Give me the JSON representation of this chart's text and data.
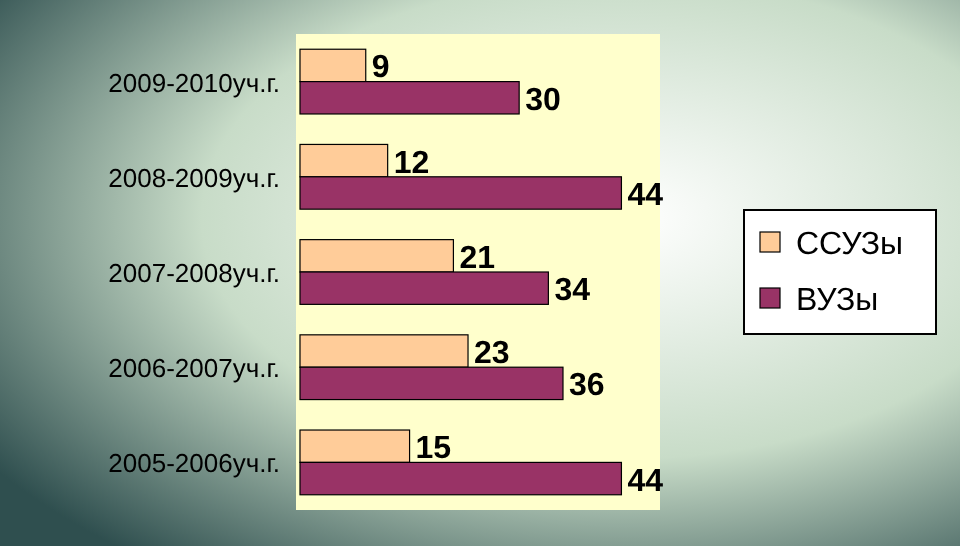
{
  "chart_data": {
    "type": "bar",
    "orientation": "horizontal",
    "categories": [
      "2009-2010уч.г.",
      "2008-2009уч.г.",
      "2007-2008уч.г.",
      "2006-2007уч.г.",
      "2005-2006уч.г."
    ],
    "series": [
      {
        "name": "ССУЗы",
        "color": "#ffcc99",
        "values": [
          9,
          12,
          21,
          23,
          15
        ]
      },
      {
        "name": "ВУЗы",
        "color": "#993366",
        "values": [
          30,
          44,
          34,
          36,
          44
        ]
      }
    ],
    "data_labels": true,
    "legend": "right"
  }
}
